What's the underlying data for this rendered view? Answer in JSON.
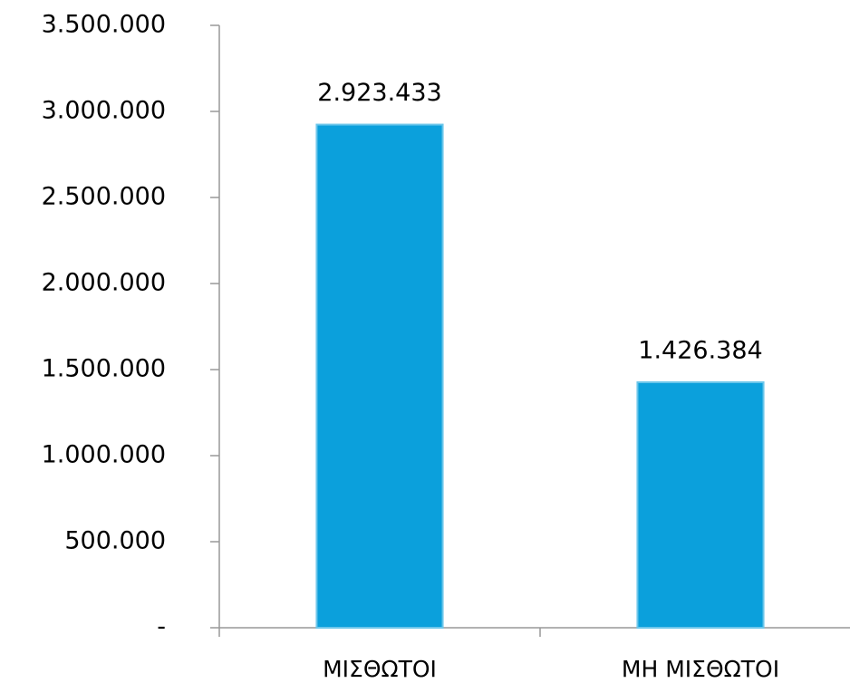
{
  "chart_data": {
    "type": "bar",
    "categories": [
      "ΜΙΣΘΩΤΟΙ",
      "ΜΗ ΜΙΣΘΩΤΟΙ"
    ],
    "values": [
      2923433,
      1426384
    ],
    "value_labels": [
      "2.923.433",
      "1.426.384"
    ],
    "color": "#0ba0dc",
    "ylim": [
      0,
      3500000
    ],
    "yticks": [
      {
        "value": 0,
        "label": "-"
      },
      {
        "value": 500000,
        "label": "500.000"
      },
      {
        "value": 1000000,
        "label": "1.000.000"
      },
      {
        "value": 1500000,
        "label": "1.500.000"
      },
      {
        "value": 2000000,
        "label": "2.000.000"
      },
      {
        "value": 2500000,
        "label": "2.500.000"
      },
      {
        "value": 3000000,
        "label": "3.000.000"
      },
      {
        "value": 3500000,
        "label": "3.500.000"
      }
    ],
    "grid": false
  }
}
